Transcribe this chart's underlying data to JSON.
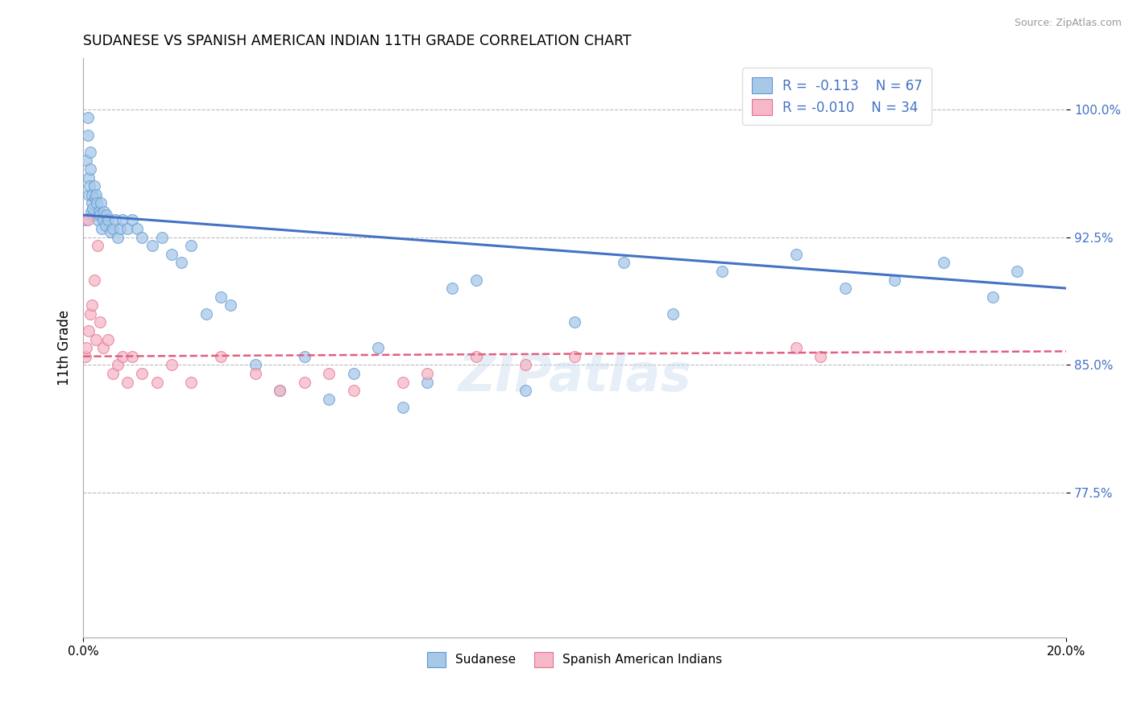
{
  "title": "SUDANESE VS SPANISH AMERICAN INDIAN 11TH GRADE CORRELATION CHART",
  "source": "Source: ZipAtlas.com",
  "ylabel": "11th Grade",
  "xlim": [
    0.0,
    20.0
  ],
  "ylim": [
    69.0,
    103.0
  ],
  "yticks": [
    77.5,
    85.0,
    92.5,
    100.0
  ],
  "ytick_labels": [
    "77.5%",
    "85.0%",
    "92.5%",
    "100.0%"
  ],
  "xtick_labels": [
    "0.0%",
    "20.0%"
  ],
  "legend_blue_r": "R =  -0.113",
  "legend_blue_n": "N = 67",
  "legend_pink_r": "R = -0.010",
  "legend_pink_n": "N = 34",
  "blue_fill": "#A8C8E8",
  "blue_edge": "#5B9BD5",
  "pink_fill": "#F4B8C8",
  "pink_edge": "#E87090",
  "trend_blue": "#4472C4",
  "trend_pink": "#E06080",
  "watermark": "ZIPatlas",
  "sudanese_x": [
    0.05,
    0.07,
    0.09,
    0.1,
    0.11,
    0.12,
    0.13,
    0.14,
    0.15,
    0.16,
    0.17,
    0.18,
    0.19,
    0.2,
    0.22,
    0.24,
    0.26,
    0.28,
    0.3,
    0.32,
    0.34,
    0.36,
    0.38,
    0.4,
    0.42,
    0.45,
    0.48,
    0.5,
    0.55,
    0.6,
    0.65,
    0.7,
    0.75,
    0.8,
    0.9,
    1.0,
    1.1,
    1.2,
    1.4,
    1.6,
    1.8,
    2.0,
    2.2,
    2.5,
    2.8,
    3.0,
    3.5,
    4.0,
    4.5,
    5.0,
    5.5,
    6.0,
    6.5,
    7.0,
    7.5,
    8.0,
    9.0,
    10.0,
    11.0,
    12.0,
    13.0,
    14.5,
    15.5,
    16.5,
    17.5,
    18.5,
    19.0
  ],
  "sudanese_y": [
    93.5,
    97.0,
    98.5,
    99.5,
    96.0,
    95.0,
    95.5,
    96.5,
    97.5,
    94.0,
    94.5,
    95.0,
    93.8,
    94.2,
    95.5,
    94.8,
    95.0,
    94.5,
    93.5,
    94.0,
    93.8,
    94.5,
    93.0,
    93.5,
    94.0,
    93.2,
    93.8,
    93.5,
    92.8,
    93.0,
    93.5,
    92.5,
    93.0,
    93.5,
    93.0,
    93.5,
    93.0,
    92.5,
    92.0,
    92.5,
    91.5,
    91.0,
    92.0,
    88.0,
    89.0,
    88.5,
    85.0,
    83.5,
    85.5,
    83.0,
    84.5,
    86.0,
    82.5,
    84.0,
    89.5,
    90.0,
    83.5,
    87.5,
    91.0,
    88.0,
    90.5,
    91.5,
    89.5,
    90.0,
    91.0,
    89.0,
    90.5
  ],
  "sai_x": [
    0.05,
    0.07,
    0.09,
    0.12,
    0.15,
    0.18,
    0.22,
    0.26,
    0.3,
    0.35,
    0.4,
    0.5,
    0.6,
    0.7,
    0.8,
    0.9,
    1.0,
    1.2,
    1.5,
    1.8,
    2.2,
    2.8,
    3.5,
    4.0,
    4.5,
    5.0,
    5.5,
    6.5,
    7.0,
    8.0,
    9.0,
    10.0,
    14.5,
    15.0
  ],
  "sai_y": [
    85.5,
    86.0,
    93.5,
    87.0,
    88.0,
    88.5,
    90.0,
    86.5,
    92.0,
    87.5,
    86.0,
    86.5,
    84.5,
    85.0,
    85.5,
    84.0,
    85.5,
    84.5,
    84.0,
    85.0,
    84.0,
    85.5,
    84.5,
    83.5,
    84.0,
    84.5,
    83.5,
    84.0,
    84.5,
    85.5,
    85.0,
    85.5,
    86.0,
    85.5
  ],
  "blue_trend_x0": 0.0,
  "blue_trend_y0": 93.8,
  "blue_trend_x1": 20.0,
  "blue_trend_y1": 89.5,
  "pink_trend_x0": 0.0,
  "pink_trend_y0": 85.5,
  "pink_trend_x1": 20.0,
  "pink_trend_y1": 85.8
}
